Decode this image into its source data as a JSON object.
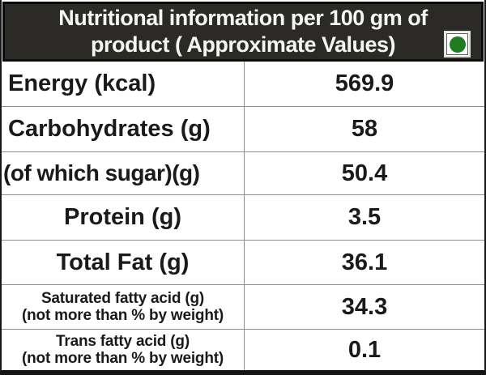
{
  "header": {
    "title_line1": "Nutritional information per 100 gm of",
    "title_line2": "product ( Approximate Values)",
    "veg_mark_icon": "veg-green-dot-icon"
  },
  "table": {
    "rows": [
      {
        "label": "Energy (kcal)",
        "value": "569.9",
        "align": "left"
      },
      {
        "label": "Carbohydrates (g)",
        "value": "58",
        "align": "left"
      },
      {
        "label": "(of which sugar)(g)",
        "value": "50.4",
        "align": "left-tight"
      },
      {
        "label": "Protein (g)",
        "value": "3.5",
        "align": "center"
      },
      {
        "label": "Total Fat (g)",
        "value": "36.1",
        "align": "center"
      },
      {
        "label": "Saturated fatty acid (g)",
        "label_line2": "(not more than % by weight)",
        "value": "34.3",
        "align": "center"
      },
      {
        "label": "Trans fatty acid (g)",
        "label_line2": "(not more than % by weight)",
        "value": "0.1",
        "align": "center"
      }
    ]
  },
  "colors": {
    "header_bg": "#2b2a27",
    "header_text": "#f5f5f5",
    "veg_green": "#1e7d1e",
    "grid_line": "#8e8e8e",
    "body_text": "#1a1a1a"
  }
}
